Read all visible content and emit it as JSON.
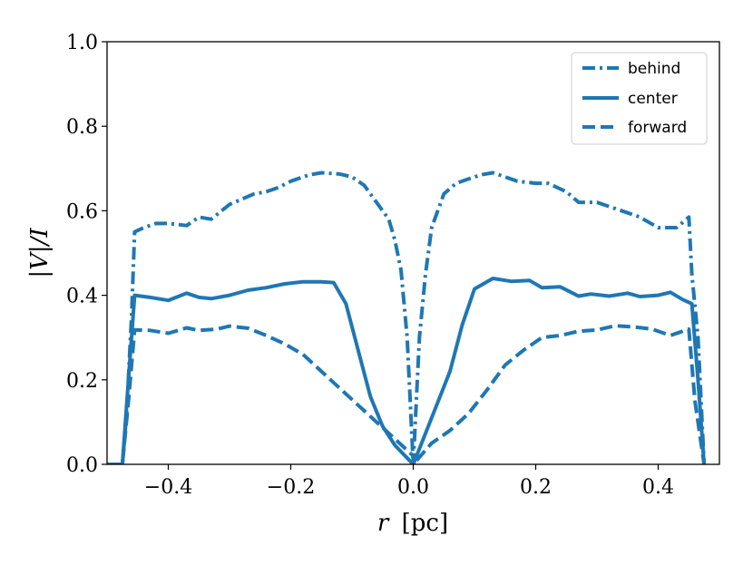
{
  "chart_data": {
    "type": "line",
    "xlabel_var": "r",
    "xlabel_unit": "[pc]",
    "ylabel": "|V|/I",
    "xlim": [
      -0.5,
      0.5
    ],
    "ylim": [
      0.0,
      1.0
    ],
    "xticks": [
      -0.4,
      -0.2,
      0.0,
      0.2,
      0.4
    ],
    "xtick_labels": [
      "−0.4",
      "−0.2",
      "0.0",
      "0.2",
      "0.4"
    ],
    "yticks": [
      0.0,
      0.2,
      0.4,
      0.6,
      0.8,
      1.0
    ],
    "ytick_labels": [
      "0.0",
      "0.2",
      "0.4",
      "0.6",
      "0.8",
      "1.0"
    ],
    "grid": false,
    "legend_position": "top-right",
    "line_color": "#1f77b4",
    "series": [
      {
        "name": "behind",
        "style": "dashdot",
        "points": [
          [
            -0.5,
            0.0
          ],
          [
            -0.475,
            0.0
          ],
          [
            -0.468,
            0.12
          ],
          [
            -0.46,
            0.35
          ],
          [
            -0.455,
            0.55
          ],
          [
            -0.44,
            0.56
          ],
          [
            -0.42,
            0.57
          ],
          [
            -0.4,
            0.57
          ],
          [
            -0.37,
            0.565
          ],
          [
            -0.35,
            0.585
          ],
          [
            -0.33,
            0.58
          ],
          [
            -0.3,
            0.615
          ],
          [
            -0.26,
            0.64
          ],
          [
            -0.24,
            0.645
          ],
          [
            -0.22,
            0.655
          ],
          [
            -0.2,
            0.67
          ],
          [
            -0.17,
            0.685
          ],
          [
            -0.15,
            0.69
          ],
          [
            -0.12,
            0.687
          ],
          [
            -0.1,
            0.68
          ],
          [
            -0.08,
            0.66
          ],
          [
            -0.06,
            0.62
          ],
          [
            -0.04,
            0.58
          ],
          [
            -0.03,
            0.53
          ],
          [
            -0.02,
            0.46
          ],
          [
            -0.01,
            0.3
          ],
          [
            0.0,
            0.0
          ],
          [
            0.01,
            0.3
          ],
          [
            0.02,
            0.45
          ],
          [
            0.03,
            0.56
          ],
          [
            0.05,
            0.64
          ],
          [
            0.07,
            0.665
          ],
          [
            0.09,
            0.675
          ],
          [
            0.11,
            0.685
          ],
          [
            0.13,
            0.69
          ],
          [
            0.15,
            0.68
          ],
          [
            0.17,
            0.67
          ],
          [
            0.2,
            0.665
          ],
          [
            0.22,
            0.665
          ],
          [
            0.25,
            0.645
          ],
          [
            0.27,
            0.62
          ],
          [
            0.3,
            0.62
          ],
          [
            0.32,
            0.61
          ],
          [
            0.35,
            0.595
          ],
          [
            0.37,
            0.585
          ],
          [
            0.4,
            0.56
          ],
          [
            0.43,
            0.56
          ],
          [
            0.45,
            0.585
          ],
          [
            0.455,
            0.45
          ],
          [
            0.465,
            0.3
          ],
          [
            0.475,
            0.0
          ]
        ]
      },
      {
        "name": "center",
        "style": "solid",
        "points": [
          [
            -0.5,
            0.0
          ],
          [
            -0.475,
            0.0
          ],
          [
            -0.465,
            0.2
          ],
          [
            -0.455,
            0.4
          ],
          [
            -0.43,
            0.395
          ],
          [
            -0.4,
            0.388
          ],
          [
            -0.37,
            0.405
          ],
          [
            -0.35,
            0.395
          ],
          [
            -0.33,
            0.392
          ],
          [
            -0.3,
            0.4
          ],
          [
            -0.27,
            0.412
          ],
          [
            -0.24,
            0.418
          ],
          [
            -0.21,
            0.427
          ],
          [
            -0.18,
            0.432
          ],
          [
            -0.15,
            0.432
          ],
          [
            -0.13,
            0.43
          ],
          [
            -0.11,
            0.38
          ],
          [
            -0.09,
            0.27
          ],
          [
            -0.07,
            0.16
          ],
          [
            -0.05,
            0.09
          ],
          [
            -0.03,
            0.045
          ],
          [
            0.0,
            0.0
          ],
          [
            0.03,
            0.11
          ],
          [
            0.06,
            0.22
          ],
          [
            0.08,
            0.33
          ],
          [
            0.1,
            0.415
          ],
          [
            0.13,
            0.44
          ],
          [
            0.16,
            0.433
          ],
          [
            0.19,
            0.435
          ],
          [
            0.21,
            0.418
          ],
          [
            0.24,
            0.42
          ],
          [
            0.27,
            0.398
          ],
          [
            0.29,
            0.403
          ],
          [
            0.32,
            0.398
          ],
          [
            0.35,
            0.405
          ],
          [
            0.37,
            0.397
          ],
          [
            0.4,
            0.4
          ],
          [
            0.42,
            0.407
          ],
          [
            0.44,
            0.39
          ],
          [
            0.455,
            0.38
          ],
          [
            0.465,
            0.2
          ],
          [
            0.475,
            0.0
          ]
        ]
      },
      {
        "name": "forward",
        "style": "dashed",
        "points": [
          [
            -0.5,
            0.0
          ],
          [
            -0.475,
            0.0
          ],
          [
            -0.465,
            0.15
          ],
          [
            -0.455,
            0.318
          ],
          [
            -0.43,
            0.317
          ],
          [
            -0.4,
            0.31
          ],
          [
            -0.37,
            0.323
          ],
          [
            -0.35,
            0.317
          ],
          [
            -0.32,
            0.32
          ],
          [
            -0.3,
            0.327
          ],
          [
            -0.27,
            0.322
          ],
          [
            -0.24,
            0.305
          ],
          [
            -0.21,
            0.285
          ],
          [
            -0.18,
            0.26
          ],
          [
            -0.15,
            0.22
          ],
          [
            -0.12,
            0.18
          ],
          [
            -0.09,
            0.14
          ],
          [
            -0.06,
            0.1
          ],
          [
            -0.03,
            0.06
          ],
          [
            0.0,
            0.02
          ],
          [
            0.0,
            0.0
          ],
          [
            0.03,
            0.05
          ],
          [
            0.06,
            0.08
          ],
          [
            0.09,
            0.12
          ],
          [
            0.12,
            0.175
          ],
          [
            0.15,
            0.235
          ],
          [
            0.18,
            0.27
          ],
          [
            0.21,
            0.3
          ],
          [
            0.24,
            0.305
          ],
          [
            0.27,
            0.315
          ],
          [
            0.3,
            0.318
          ],
          [
            0.33,
            0.328
          ],
          [
            0.36,
            0.325
          ],
          [
            0.39,
            0.32
          ],
          [
            0.42,
            0.305
          ],
          [
            0.45,
            0.32
          ],
          [
            0.46,
            0.15
          ],
          [
            0.475,
            0.0
          ]
        ]
      }
    ]
  }
}
